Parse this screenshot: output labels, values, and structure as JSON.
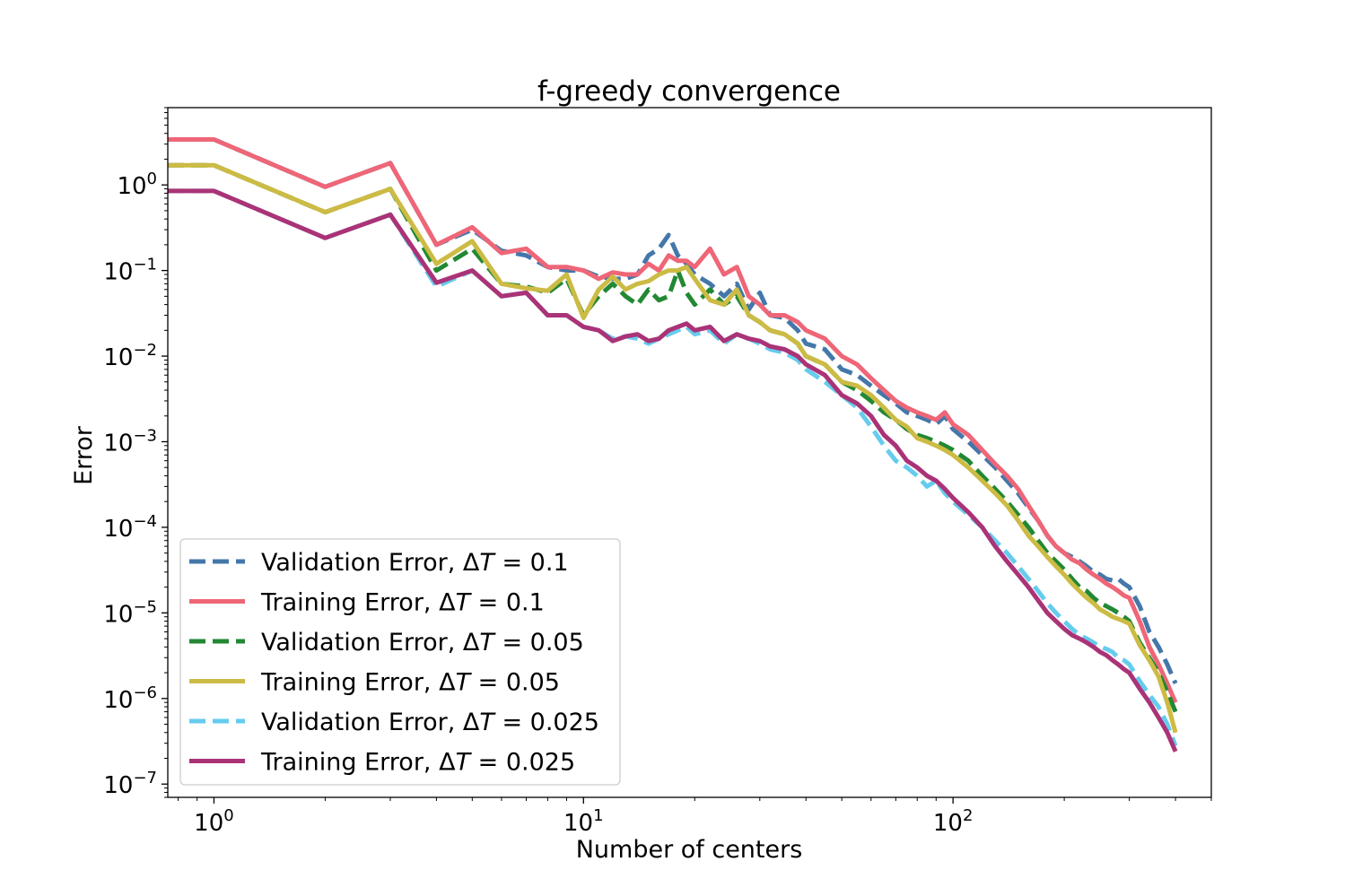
{
  "chart_data": {
    "type": "line",
    "title": "f-greedy convergence",
    "xlabel": "Number of centers",
    "ylabel": "Error",
    "xscale": "log",
    "yscale": "log",
    "xlim": [
      0.75,
      500
    ],
    "ylim": [
      7e-08,
      8
    ],
    "grid": false,
    "legend_position": "lower-left",
    "x_ticks": [
      {
        "value": 1,
        "base": "10",
        "exp": "0"
      },
      {
        "value": 10,
        "base": "10",
        "exp": "1"
      },
      {
        "value": 100,
        "base": "10",
        "exp": "2"
      }
    ],
    "y_ticks": [
      {
        "value": 1,
        "base": "10",
        "exp": "0"
      },
      {
        "value": 0.1,
        "base": "10",
        "exp": "−1"
      },
      {
        "value": 0.01,
        "base": "10",
        "exp": "−2"
      },
      {
        "value": 0.001,
        "base": "10",
        "exp": "−3"
      },
      {
        "value": 0.0001,
        "base": "10",
        "exp": "−4"
      },
      {
        "value": 1e-05,
        "base": "10",
        "exp": "−5"
      },
      {
        "value": 1e-06,
        "base": "10",
        "exp": "−6"
      },
      {
        "value": 1e-07,
        "base": "10",
        "exp": "−7"
      }
    ],
    "series": [
      {
        "name": "Validation Error, ΔT = 0.1",
        "label_prefix": "Validation Error, Δ",
        "label_var": "T",
        "label_suffix": " = 0.1",
        "color": "#4477aa",
        "dash": true,
        "x": [
          0.75,
          1,
          2,
          3,
          4,
          5,
          6,
          7,
          8,
          9,
          10,
          11,
          12,
          13,
          14,
          15,
          16,
          17,
          18,
          19,
          20,
          22,
          24,
          26,
          28,
          30,
          32,
          35,
          38,
          40,
          45,
          50,
          55,
          60,
          65,
          70,
          75,
          80,
          85,
          90,
          95,
          100,
          110,
          120,
          130,
          140,
          150,
          160,
          170,
          180,
          190,
          200,
          210,
          220,
          230,
          240,
          250,
          260,
          270,
          280,
          290,
          300,
          320,
          340,
          360,
          380,
          400
        ],
        "y": [
          3.4,
          3.4,
          0.95,
          1.8,
          0.2,
          0.3,
          0.17,
          0.15,
          0.11,
          0.1,
          0.1,
          0.085,
          0.08,
          0.08,
          0.09,
          0.15,
          0.18,
          0.26,
          0.15,
          0.12,
          0.09,
          0.07,
          0.05,
          0.07,
          0.035,
          0.055,
          0.03,
          0.028,
          0.02,
          0.014,
          0.012,
          0.007,
          0.006,
          0.0045,
          0.0035,
          0.0028,
          0.0022,
          0.002,
          0.0018,
          0.0016,
          0.002,
          0.0014,
          0.001,
          0.0007,
          0.0005,
          0.00035,
          0.00025,
          0.00017,
          0.00012,
          8e-05,
          6e-05,
          5e-05,
          4.5e-05,
          4e-05,
          3.5e-05,
          3e-05,
          2.8e-05,
          2.5e-05,
          2.4e-05,
          2.5e-05,
          2.2e-05,
          2e-05,
          1.2e-05,
          6e-06,
          4e-06,
          2.5e-06,
          1.5e-06
        ]
      },
      {
        "name": "Training Error, ΔT = 0.1",
        "label_prefix": "Training Error, Δ",
        "label_var": "T",
        "label_suffix": " = 0.1",
        "color": "#ee6677",
        "dash": false,
        "x": [
          0.75,
          1,
          2,
          3,
          4,
          5,
          6,
          7,
          8,
          9,
          10,
          11,
          12,
          13,
          14,
          15,
          16,
          17,
          18,
          19,
          20,
          22,
          24,
          26,
          28,
          30,
          32,
          35,
          38,
          40,
          45,
          50,
          55,
          60,
          65,
          70,
          75,
          80,
          85,
          90,
          95,
          100,
          110,
          120,
          130,
          140,
          150,
          160,
          170,
          180,
          190,
          200,
          210,
          220,
          230,
          240,
          250,
          260,
          270,
          280,
          290,
          300,
          320,
          340,
          360,
          380,
          400
        ],
        "y": [
          3.4,
          3.4,
          0.95,
          1.8,
          0.2,
          0.32,
          0.16,
          0.18,
          0.11,
          0.11,
          0.1,
          0.08,
          0.095,
          0.09,
          0.09,
          0.12,
          0.1,
          0.15,
          0.13,
          0.13,
          0.11,
          0.18,
          0.09,
          0.11,
          0.05,
          0.04,
          0.03,
          0.03,
          0.025,
          0.02,
          0.016,
          0.01,
          0.008,
          0.0055,
          0.004,
          0.003,
          0.0025,
          0.0022,
          0.002,
          0.0018,
          0.0022,
          0.0016,
          0.0012,
          0.0008,
          0.00055,
          0.0004,
          0.00028,
          0.00018,
          0.00012,
          8e-05,
          6e-05,
          5e-05,
          4.2e-05,
          3.8e-05,
          3.2e-05,
          2.8e-05,
          2.5e-05,
          2.2e-05,
          2e-05,
          1.8e-05,
          1.6e-05,
          1.5e-05,
          8e-06,
          4e-06,
          2.5e-06,
          1.5e-06,
          9e-07
        ]
      },
      {
        "name": "Validation Error, ΔT = 0.05",
        "label_prefix": "Validation Error, Δ",
        "label_var": "T",
        "label_suffix": " = 0.05",
        "color": "#228833",
        "dash": true,
        "x": [
          0.75,
          1,
          2,
          3,
          4,
          5,
          6,
          7,
          8,
          9,
          10,
          11,
          12,
          13,
          14,
          15,
          16,
          17,
          18,
          19,
          20,
          22,
          24,
          26,
          28,
          30,
          32,
          35,
          38,
          40,
          45,
          50,
          55,
          60,
          65,
          70,
          75,
          80,
          85,
          90,
          95,
          100,
          110,
          120,
          130,
          140,
          150,
          160,
          170,
          180,
          190,
          200,
          210,
          220,
          230,
          240,
          250,
          260,
          270,
          280,
          290,
          300,
          320,
          340,
          360,
          380,
          400
        ],
        "y": [
          1.7,
          1.7,
          0.48,
          0.9,
          0.1,
          0.18,
          0.07,
          0.065,
          0.055,
          0.08,
          0.03,
          0.05,
          0.07,
          0.05,
          0.04,
          0.06,
          0.045,
          0.05,
          0.1,
          0.055,
          0.04,
          0.06,
          0.04,
          0.05,
          0.03,
          0.025,
          0.02,
          0.018,
          0.014,
          0.01,
          0.008,
          0.005,
          0.004,
          0.003,
          0.0022,
          0.0018,
          0.0014,
          0.0012,
          0.0011,
          0.001,
          0.0009,
          0.0008,
          0.0006,
          0.0004,
          0.00028,
          0.0002,
          0.00014,
          0.0001,
          7e-05,
          5e-05,
          4e-05,
          3.2e-05,
          2.5e-05,
          2e-05,
          1.8e-05,
          1.5e-05,
          1.3e-05,
          1.2e-05,
          1.1e-05,
          1e-05,
          9e-06,
          8e-06,
          4.5e-06,
          3e-06,
          2e-06,
          1.2e-06,
          7e-07
        ]
      },
      {
        "name": "Training Error, ΔT = 0.05",
        "label_prefix": "Training Error, Δ",
        "label_var": "T",
        "label_suffix": " = 0.05",
        "color": "#ccbb44",
        "dash": false,
        "x": [
          0.75,
          1,
          2,
          3,
          4,
          5,
          6,
          7,
          8,
          9,
          10,
          11,
          12,
          13,
          14,
          15,
          16,
          17,
          18,
          19,
          20,
          22,
          24,
          26,
          28,
          30,
          32,
          35,
          38,
          40,
          45,
          50,
          55,
          60,
          65,
          70,
          75,
          80,
          85,
          90,
          95,
          100,
          110,
          120,
          130,
          140,
          150,
          160,
          170,
          180,
          190,
          200,
          210,
          220,
          230,
          240,
          250,
          260,
          270,
          280,
          290,
          300,
          320,
          340,
          360,
          380,
          400
        ],
        "y": [
          1.7,
          1.7,
          0.48,
          0.9,
          0.12,
          0.22,
          0.07,
          0.062,
          0.058,
          0.09,
          0.028,
          0.06,
          0.085,
          0.06,
          0.07,
          0.075,
          0.09,
          0.1,
          0.1,
          0.11,
          0.08,
          0.045,
          0.04,
          0.06,
          0.03,
          0.025,
          0.02,
          0.018,
          0.014,
          0.01,
          0.008,
          0.005,
          0.0045,
          0.0035,
          0.0025,
          0.0018,
          0.0015,
          0.0011,
          0.001,
          0.0009,
          0.0008,
          0.0007,
          0.0005,
          0.00035,
          0.00025,
          0.00018,
          0.00012,
          8e-05,
          6e-05,
          4.5e-05,
          3.5e-05,
          2.8e-05,
          2.2e-05,
          1.8e-05,
          1.5e-05,
          1.3e-05,
          1.1e-05,
          1e-05,
          9e-06,
          8.5e-06,
          8e-06,
          7.5e-06,
          4.2e-06,
          2.8e-06,
          1.8e-06,
          9e-07,
          4e-07
        ]
      },
      {
        "name": "Validation Error, ΔT = 0.025",
        "label_prefix": "Validation Error, Δ",
        "label_var": "T",
        "label_suffix": " = 0.025",
        "color": "#66ccee",
        "dash": true,
        "x": [
          0.75,
          1,
          2,
          3,
          4,
          5,
          6,
          7,
          8,
          9,
          10,
          11,
          12,
          13,
          14,
          15,
          16,
          17,
          18,
          19,
          20,
          22,
          24,
          26,
          28,
          30,
          32,
          35,
          38,
          40,
          45,
          50,
          55,
          60,
          65,
          70,
          75,
          80,
          85,
          90,
          95,
          100,
          110,
          120,
          130,
          140,
          150,
          160,
          170,
          180,
          190,
          200,
          210,
          220,
          230,
          240,
          250,
          260,
          270,
          280,
          290,
          300,
          320,
          340,
          360,
          380,
          400
        ],
        "y": [
          0.85,
          0.85,
          0.24,
          0.45,
          0.065,
          0.1,
          0.05,
          0.055,
          0.03,
          0.03,
          0.022,
          0.02,
          0.016,
          0.017,
          0.016,
          0.014,
          0.016,
          0.018,
          0.02,
          0.022,
          0.018,
          0.02,
          0.014,
          0.018,
          0.016,
          0.014,
          0.012,
          0.011,
          0.009,
          0.007,
          0.005,
          0.0035,
          0.0025,
          0.0015,
          0.0009,
          0.0006,
          0.0005,
          0.0004,
          0.0003,
          0.00035,
          0.00025,
          0.0002,
          0.00014,
          0.0001,
          7e-05,
          5e-05,
          3.5e-05,
          2.5e-05,
          1.8e-05,
          1.3e-05,
          1e-05,
          8e-06,
          6.5e-06,
          5.5e-06,
          5e-06,
          4.5e-06,
          4e-06,
          3.8e-06,
          3.5e-06,
          3e-06,
          2.8e-06,
          2.5e-06,
          1.6e-06,
          1.1e-06,
          8e-07,
          5e-07,
          2.8e-07
        ]
      },
      {
        "name": "Training Error, ΔT = 0.025",
        "label_prefix": "Training Error, Δ",
        "label_var": "T",
        "label_suffix": " = 0.025",
        "color": "#aa3377",
        "dash": false,
        "x": [
          0.75,
          1,
          2,
          3,
          4,
          5,
          6,
          7,
          8,
          9,
          10,
          11,
          12,
          13,
          14,
          15,
          16,
          17,
          18,
          19,
          20,
          22,
          24,
          26,
          28,
          30,
          32,
          35,
          38,
          40,
          45,
          50,
          55,
          60,
          65,
          70,
          75,
          80,
          85,
          90,
          95,
          100,
          110,
          120,
          130,
          140,
          150,
          160,
          170,
          180,
          190,
          200,
          210,
          220,
          230,
          240,
          250,
          260,
          270,
          280,
          290,
          300,
          320,
          340,
          360,
          380,
          400
        ],
        "y": [
          0.85,
          0.85,
          0.24,
          0.45,
          0.072,
          0.1,
          0.05,
          0.055,
          0.03,
          0.03,
          0.022,
          0.02,
          0.015,
          0.017,
          0.018,
          0.015,
          0.016,
          0.02,
          0.022,
          0.024,
          0.02,
          0.022,
          0.015,
          0.018,
          0.016,
          0.015,
          0.013,
          0.012,
          0.01,
          0.008,
          0.006,
          0.0035,
          0.0028,
          0.002,
          0.0012,
          0.0009,
          0.0006,
          0.0005,
          0.0004,
          0.00035,
          0.00028,
          0.00022,
          0.00015,
          0.0001,
          6e-05,
          4e-05,
          2.8e-05,
          2e-05,
          1.4e-05,
          1e-05,
          8e-06,
          6.5e-06,
          5.5e-06,
          5e-06,
          4.5e-06,
          4e-06,
          3.5e-06,
          3.2e-06,
          2.8e-06,
          2.5e-06,
          2.2e-06,
          2e-06,
          1.3e-06,
          9e-07,
          6e-07,
          4e-07,
          2.4e-07
        ]
      }
    ]
  }
}
